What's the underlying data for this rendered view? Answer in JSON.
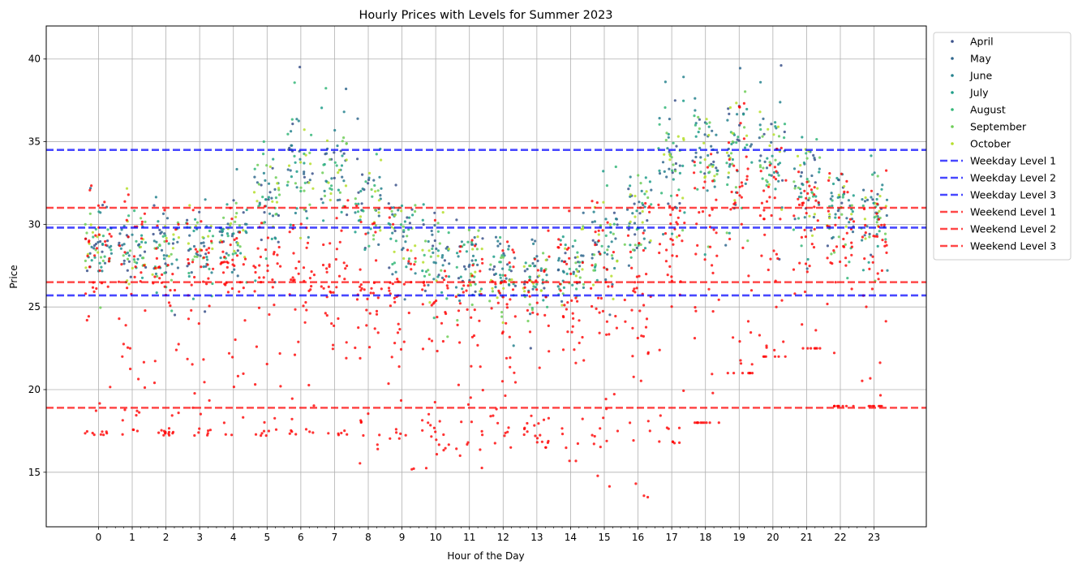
{
  "chart_data": {
    "type": "scatter",
    "title": "Hourly Prices with Levels for Summer 2023",
    "xlabel": "Hour of the Day",
    "ylabel": "Price",
    "xlim": [
      -1.55,
      24.55
    ],
    "ylim": [
      11.7,
      42.0
    ],
    "x_ticks": [
      0,
      1,
      2,
      3,
      4,
      5,
      6,
      7,
      8,
      9,
      10,
      11,
      12,
      13,
      14,
      15,
      16,
      17,
      18,
      19,
      20,
      21,
      22,
      23
    ],
    "y_ticks": [
      15,
      20,
      25,
      30,
      35,
      40
    ],
    "grid": true,
    "legend_position": "outside-upper-right",
    "series": [
      {
        "name": "April",
        "color": "#3b528b"
      },
      {
        "name": "May",
        "color": "#31688e"
      },
      {
        "name": "June",
        "color": "#26828e"
      },
      {
        "name": "July",
        "color": "#1f9e89"
      },
      {
        "name": "August",
        "color": "#35b779"
      },
      {
        "name": "September",
        "color": "#6ece58"
      },
      {
        "name": "October",
        "color": "#b5de2b"
      }
    ],
    "weekend_points_color": "#ff0000",
    "hourly_price_ranges": {
      "weekday_low": [
        24.5,
        24.5,
        24.5,
        24.5,
        24.5,
        26.0,
        27.0,
        27.0,
        25.5,
        24.5,
        23.0,
        23.0,
        22.5,
        22.5,
        23.0,
        24.0,
        25.5,
        27.0,
        28.0,
        28.5,
        27.5,
        27.0,
        26.5,
        26.5
      ],
      "weekday_high": [
        33.0,
        32.5,
        32.0,
        33.0,
        34.0,
        37.5,
        40.0,
        39.5,
        37.0,
        35.0,
        33.0,
        32.0,
        31.5,
        31.5,
        32.0,
        33.5,
        36.0,
        40.5,
        40.5,
        40.5,
        40.0,
        38.0,
        35.0,
        34.5
      ],
      "weekend_low": [
        17.2,
        17.2,
        17.2,
        17.2,
        17.2,
        17.2,
        17.2,
        17.2,
        15.5,
        15.0,
        14.5,
        15.0,
        16.5,
        16.5,
        15.0,
        14.0,
        13.0,
        16.5,
        18.0,
        21.0,
        22.0,
        22.5,
        19.0,
        19.0
      ],
      "weekend_high": [
        33.0,
        32.5,
        32.0,
        31.5,
        31.5,
        31.5,
        31.5,
        31.5,
        31.5,
        31.0,
        30.5,
        30.0,
        30.0,
        30.5,
        31.0,
        31.5,
        32.0,
        35.0,
        37.5,
        38.0,
        35.0,
        34.0,
        33.5,
        33.5
      ]
    },
    "levels": [
      {
        "name": "Weekday Level 1",
        "value": 34.5,
        "color": "#0000ff"
      },
      {
        "name": "Weekday Level 2",
        "value": 29.8,
        "color": "#0000ff"
      },
      {
        "name": "Weekday Level 3",
        "value": 25.7,
        "color": "#0000ff"
      },
      {
        "name": "Weekend Level 1",
        "value": 31.0,
        "color": "#ff0000"
      },
      {
        "name": "Weekend Level 2",
        "value": 26.5,
        "color": "#ff0000"
      },
      {
        "name": "Weekend Level 3",
        "value": 18.9,
        "color": "#ff0000"
      }
    ]
  }
}
